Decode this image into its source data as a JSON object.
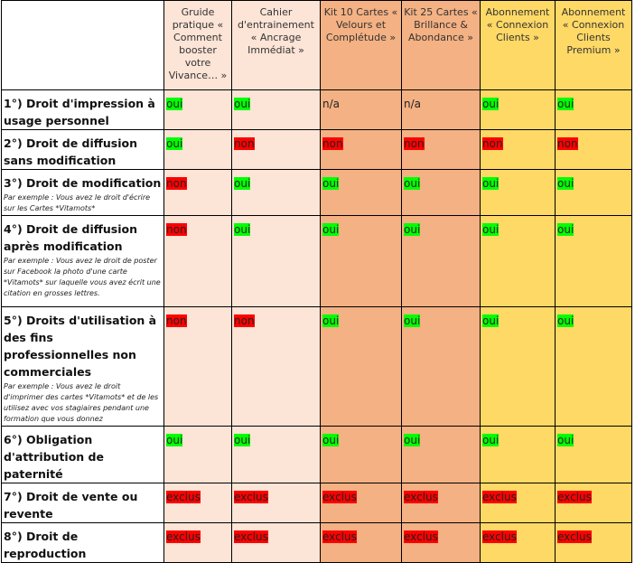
{
  "header": {
    "columns": [
      "Gruide pratique « Comment booster votre Vivance… »",
      "Cahier d'entrainement « Ancrage Immédiat »",
      "Kit 10 Cartes « Velours et Complétude »",
      "Kit 25 Cartes « Brillance & Abondance »",
      "Abonnement « Connexion Clients »",
      "Abonnement « Connexion Clients Premium »"
    ]
  },
  "table": {
    "rows": [
      {
        "label": "1°) Droit d'impression à usage personnel",
        "cells": [
          "oui",
          "oui",
          "n/a",
          "n/a",
          "oui",
          "oui"
        ],
        "highlights": [
          "#00ff00",
          "#00ff00",
          null,
          null,
          "#00ff00",
          "#00ff00"
        ]
      },
      {
        "label": "2°) Droit de diffusion sans modification",
        "cells": [
          "oui",
          "non",
          "non",
          "non",
          "non",
          "non"
        ],
        "highlights": [
          "#00ff00",
          "#ff0000",
          "#ff0000",
          "#ff0000",
          "#ff0000",
          "#ff0000"
        ]
      },
      {
        "label": "3°) Droit de modification",
        "note": "Par exemple : Vous avez le droit d'écrire sur les Cartes *Vitamots*",
        "cells": [
          "non",
          "oui",
          "oui",
          "oui",
          "oui",
          "oui"
        ],
        "highlights": [
          "#ff0000",
          "#00ff00",
          "#00ff00",
          "#00ff00",
          "#00ff00",
          "#00ff00"
        ]
      },
      {
        "label": "4°) Droit de diffusion après modification",
        "note": "Par exemple : Vous avez le droit de poster sur Facebook la photo d'une carte *Vitamots* sur laquelle vous avez écrit une citation en grosses lettres.",
        "cells": [
          "non",
          "oui",
          "oui",
          "oui",
          "oui",
          "oui"
        ],
        "highlights": [
          "#ff0000",
          "#00ff00",
          "#00ff00",
          "#00ff00",
          "#00ff00",
          "#00ff00"
        ]
      },
      {
        "label": "5°) Droits d'utilisation à des fins professionnelles non commerciales",
        "note": "Par exemple : Vous avez le droit d'imprimer des cartes *Vitamots* et de les utilisez avec vos stagiaires pendant une formation que vous donnez",
        "cells": [
          "non",
          "non",
          "oui",
          "oui",
          "oui",
          "oui"
        ],
        "highlights": [
          "#ff0000",
          "#ff0000",
          "#00ff00",
          "#00ff00",
          "#00ff00",
          "#00ff00"
        ]
      },
      {
        "label": "6°) Obligation d'attribution de paternité",
        "cells": [
          "oui",
          "oui",
          "oui",
          "oui",
          "oui",
          "oui"
        ],
        "highlights": [
          "#00ff00",
          "#00ff00",
          "#00ff00",
          "#00ff00",
          "#00ff00",
          "#00ff00"
        ]
      },
      {
        "label": "7°) Droit de vente ou revente",
        "cells": [
          "exclus",
          "exclus",
          "exclus",
          "exclus",
          "exclus",
          "exclus"
        ],
        "highlights": [
          "#ff0000",
          "#ff0000",
          "#ff0000",
          "#ff0000",
          "#ff0000",
          "#ff0000"
        ]
      },
      {
        "label": "8°) Droit de reproduction",
        "cells": [
          "exclus",
          "exclus",
          "exclus",
          "exclus",
          "exclus",
          "exclus"
        ],
        "highlights": [
          "#ff0000",
          "#ff0000",
          "#ff0000",
          "#ff0000",
          "#ff0000",
          "#ff0000"
        ]
      }
    ]
  }
}
